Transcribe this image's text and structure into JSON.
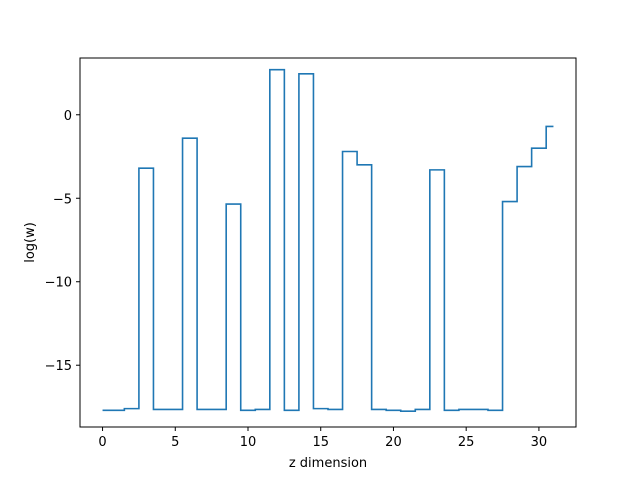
{
  "chart_data": {
    "type": "line",
    "drawstyle": "steps-mid",
    "xlabel": "z dimension",
    "ylabel": "log(w)",
    "xlim": [
      -1.55,
      32.55
    ],
    "ylim": [
      -18.7,
      3.4
    ],
    "xticks": [
      0,
      5,
      10,
      15,
      20,
      25,
      30
    ],
    "xtick_labels": [
      "0",
      "5",
      "10",
      "15",
      "20",
      "25",
      "30"
    ],
    "yticks": [
      0,
      -5,
      -10,
      -15
    ],
    "ytick_labels": [
      "0",
      "−5",
      "−10",
      "−15"
    ],
    "grid": false,
    "series": [
      {
        "color": "#1f77b4",
        "x": [
          0,
          1,
          2,
          3,
          4,
          5,
          6,
          7,
          8,
          9,
          10,
          11,
          12,
          13,
          14,
          15,
          16,
          17,
          18,
          19,
          20,
          21,
          22,
          23,
          24,
          25,
          26,
          27,
          28,
          29,
          30,
          31
        ],
        "values": [
          -17.7,
          -17.7,
          -17.6,
          -3.2,
          -17.65,
          -17.65,
          -1.4,
          -17.65,
          -17.65,
          -5.35,
          -17.7,
          -17.65,
          2.7,
          -17.7,
          2.45,
          -17.6,
          -17.65,
          -2.2,
          -3.0,
          -17.65,
          -17.7,
          -17.75,
          -17.65,
          -3.3,
          -17.7,
          -17.65,
          -17.65,
          -17.7,
          -5.2,
          -3.1,
          -2.0,
          -0.7
        ]
      }
    ]
  }
}
